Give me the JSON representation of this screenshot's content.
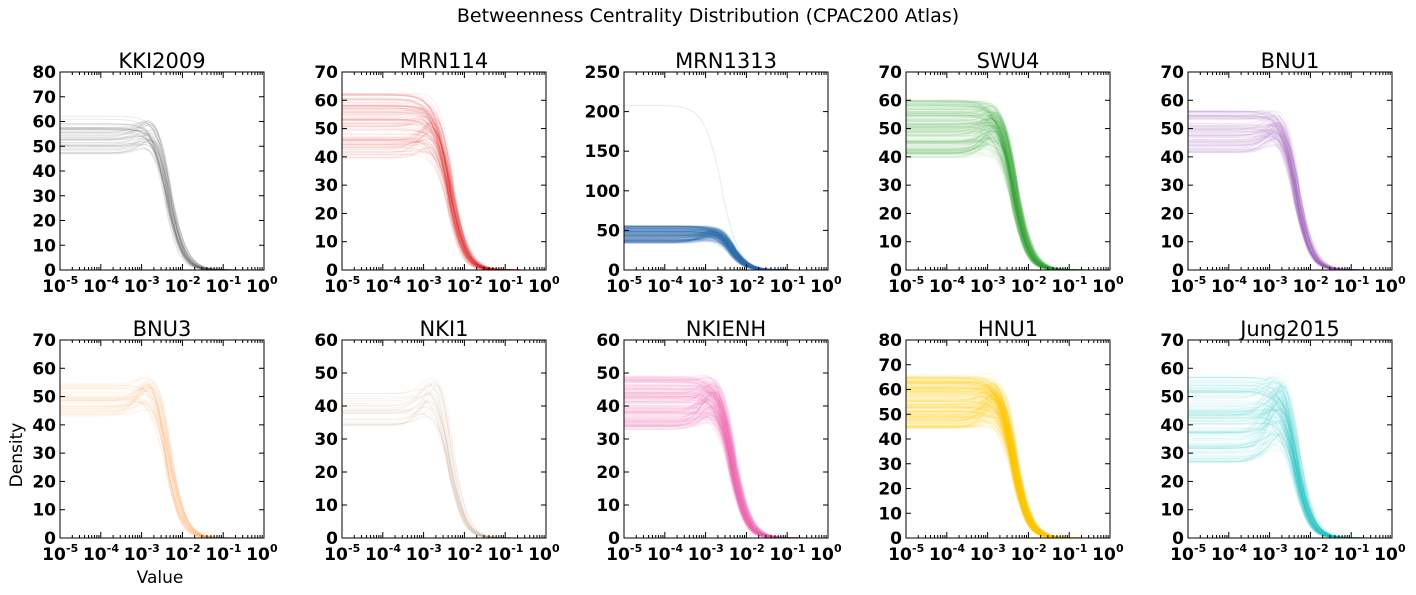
{
  "figure": {
    "title": "Betweenness Centrality Distribution (CPAC200 Atlas)",
    "ylabel": "Density",
    "xlabel": "Value"
  },
  "chart_data": [
    {
      "type": "line",
      "title": "KKI2009",
      "color": "#444444",
      "alpha": 0.1,
      "n_lines": 42,
      "y_min": 0,
      "y_max": 80,
      "y_ticks": [
        0,
        10,
        20,
        30,
        40,
        50,
        60,
        70,
        80
      ],
      "plateau_range": [
        45,
        64
      ],
      "plateau_center": 54,
      "peak_range": [
        52,
        70
      ],
      "x_decade_ticks": [
        -5,
        -4,
        -3,
        -2,
        -1,
        0
      ],
      "x_scale": "log",
      "x_range": [
        1e-05,
        1
      ]
    },
    {
      "type": "line",
      "title": "MRN114",
      "color": "#dd2222",
      "alpha": 0.07,
      "n_lines": 110,
      "y_min": 0,
      "y_max": 70,
      "y_ticks": [
        0,
        10,
        20,
        30,
        40,
        50,
        60,
        70
      ],
      "plateau_range": [
        31,
        57
      ],
      "plateau_center": 51,
      "peak_range": [
        40,
        65
      ],
      "x_decade_ticks": [
        -5,
        -4,
        -3,
        -2,
        -1,
        0
      ],
      "x_scale": "log",
      "x_range": [
        1e-05,
        1
      ]
    },
    {
      "type": "line",
      "title": "MRN1313",
      "color": "#2f75b5",
      "alpha": 0.08,
      "n_lines": 260,
      "y_min": 0,
      "y_max": 250,
      "y_ticks": [
        0,
        50,
        100,
        150,
        200,
        250
      ],
      "plateau_range": [
        35,
        60
      ],
      "plateau_center": 45,
      "peak_range": [
        40,
        62
      ],
      "outlier_plateau": 208,
      "x_decade_ticks": [
        -5,
        -4,
        -3,
        -2,
        -1,
        0
      ],
      "x_scale": "log",
      "x_range": [
        1e-05,
        1
      ]
    },
    {
      "type": "line",
      "title": "SWU4",
      "color": "#3aa53a",
      "alpha": 0.07,
      "n_lines": 220,
      "y_min": 0,
      "y_max": 70,
      "y_ticks": [
        0,
        10,
        20,
        30,
        40,
        50,
        60,
        70
      ],
      "plateau_range": [
        35,
        58
      ],
      "plateau_center": 50,
      "peak_range": [
        44,
        66
      ],
      "x_decade_ticks": [
        -5,
        -4,
        -3,
        -2,
        -1,
        0
      ],
      "x_scale": "log",
      "x_range": [
        1e-05,
        1
      ]
    },
    {
      "type": "line",
      "title": "BNU1",
      "color": "#9b59b6",
      "alpha": 0.07,
      "n_lines": 110,
      "y_min": 0,
      "y_max": 70,
      "y_ticks": [
        0,
        10,
        20,
        30,
        40,
        50,
        60,
        70
      ],
      "plateau_range": [
        40,
        57
      ],
      "plateau_center": 49,
      "peak_range": [
        48,
        62
      ],
      "x_decade_ticks": [
        -5,
        -4,
        -3,
        -2,
        -1,
        0
      ],
      "x_scale": "log",
      "x_range": [
        1e-05,
        1
      ]
    },
    {
      "type": "line",
      "title": "BNU3",
      "color": "#ff9940",
      "alpha": 0.07,
      "n_lines": 48,
      "y_min": 0,
      "y_max": 70,
      "y_ticks": [
        0,
        10,
        20,
        30,
        40,
        50,
        60,
        70
      ],
      "plateau_range": [
        44,
        58
      ],
      "plateau_center": 49,
      "peak_range": [
        50,
        66
      ],
      "x_decade_ticks": [
        -5,
        -4,
        -3,
        -2,
        -1,
        0
      ],
      "x_scale": "log",
      "x_range": [
        1e-05,
        1
      ]
    },
    {
      "type": "line",
      "title": "NKI1",
      "color": "#b07a5a",
      "alpha": 0.08,
      "n_lines": 24,
      "y_min": 0,
      "y_max": 60,
      "y_ticks": [
        0,
        10,
        20,
        30,
        40,
        50,
        60
      ],
      "plateau_range": [
        33,
        45
      ],
      "plateau_center": 39,
      "peak_range": [
        40,
        57
      ],
      "x_decade_ticks": [
        -5,
        -4,
        -3,
        -2,
        -1,
        0
      ],
      "x_scale": "log",
      "x_range": [
        1e-05,
        1
      ]
    },
    {
      "type": "line",
      "title": "NKIENH",
      "color": "#f06ab0",
      "alpha": 0.08,
      "n_lines": 190,
      "y_min": 0,
      "y_max": 60,
      "y_ticks": [
        0,
        10,
        20,
        30,
        40,
        50,
        60
      ],
      "plateau_range": [
        30,
        48
      ],
      "plateau_center": 41,
      "peak_range": [
        38,
        56
      ],
      "x_decade_ticks": [
        -5,
        -4,
        -3,
        -2,
        -1,
        0
      ],
      "x_scale": "log",
      "x_range": [
        1e-05,
        1
      ]
    },
    {
      "type": "line",
      "title": "HNU1",
      "color": "#ffcc00",
      "alpha": 0.08,
      "n_lines": 280,
      "y_min": 0,
      "y_max": 80,
      "y_ticks": [
        0,
        10,
        20,
        30,
        40,
        50,
        60,
        70,
        80
      ],
      "plateau_range": [
        42,
        66
      ],
      "plateau_center": 55,
      "peak_range": [
        48,
        73
      ],
      "x_decade_ticks": [
        -5,
        -4,
        -3,
        -2,
        -1,
        0
      ],
      "x_scale": "log",
      "x_range": [
        1e-05,
        1
      ]
    },
    {
      "type": "line",
      "title": "Jung2015",
      "color": "#22c5c5",
      "alpha": 0.07,
      "n_lines": 150,
      "y_min": 0,
      "y_max": 70,
      "y_ticks": [
        0,
        10,
        20,
        30,
        40,
        50,
        60,
        70
      ],
      "plateau_range": [
        28,
        62
      ],
      "plateau_center": 42,
      "peak_range": [
        36,
        68
      ],
      "x_decade_ticks": [
        -5,
        -4,
        -3,
        -2,
        -1,
        0
      ],
      "x_scale": "log",
      "x_range": [
        1e-05,
        1
      ]
    }
  ]
}
